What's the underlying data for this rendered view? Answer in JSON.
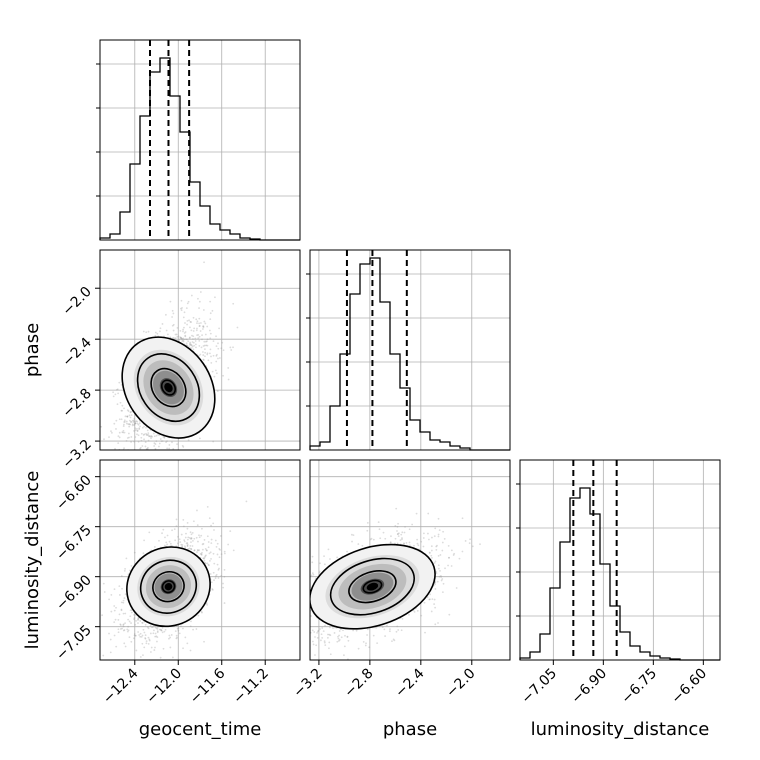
{
  "chart_data": {
    "type": "corner",
    "parameters": [
      "geocent_time",
      "phase",
      "luminosity_distance"
    ],
    "axis_labels": {
      "geocent_time": "geocent_time",
      "phase": "phase",
      "luminosity_distance": "luminosity_distance"
    },
    "ranges": {
      "geocent_time": [
        -12.72,
        -10.88
      ],
      "phase": [
        -3.27,
        -1.7
      ],
      "luminosity_distance": [
        -7.15,
        -6.55
      ]
    },
    "ticks": {
      "geocent_time": [
        -12.4,
        -12.0,
        -11.6,
        -11.2
      ],
      "phase": [
        -3.2,
        -2.8,
        -2.4,
        -2.0
      ],
      "luminosity_distance": [
        -7.05,
        -6.9,
        -6.75,
        -6.6
      ]
    },
    "tick_labels": {
      "geocent_time": [
        "−12.4",
        "−12.0",
        "−11.6",
        "−11.2"
      ],
      "phase": [
        "−3.2",
        "−2.8",
        "−2.4",
        "−2.0"
      ],
      "luminosity_distance": [
        "−7.05",
        "−6.90",
        "−6.75",
        "−6.60"
      ]
    },
    "quantiles": {
      "geocent_time": [
        -12.26,
        -12.09,
        -11.9
      ],
      "phase": [
        -2.98,
        -2.78,
        -2.51
      ],
      "luminosity_distance": [
        -6.99,
        -6.93,
        -6.86
      ]
    },
    "histograms": {
      "geocent_time": [
        0.01,
        0.03,
        0.14,
        0.38,
        0.62,
        0.84,
        0.91,
        0.72,
        0.54,
        0.29,
        0.17,
        0.08,
        0.05,
        0.03,
        0.01,
        0.005,
        0,
        0,
        0,
        0
      ],
      "phase": [
        0.02,
        0.04,
        0.22,
        0.48,
        0.78,
        0.93,
        0.96,
        0.74,
        0.48,
        0.31,
        0.15,
        0.09,
        0.05,
        0.04,
        0.02,
        0.01,
        0,
        0,
        0,
        0
      ],
      "luminosity_distance": [
        0.01,
        0.04,
        0.13,
        0.36,
        0.59,
        0.81,
        0.86,
        0.73,
        0.48,
        0.27,
        0.14,
        0.07,
        0.04,
        0.02,
        0.01,
        0.005,
        0,
        0,
        0,
        0
      ]
    },
    "grid": true,
    "contours": "density levels in each 2D panel",
    "point_color": "#9a9a9a",
    "line_color": "#000000"
  }
}
